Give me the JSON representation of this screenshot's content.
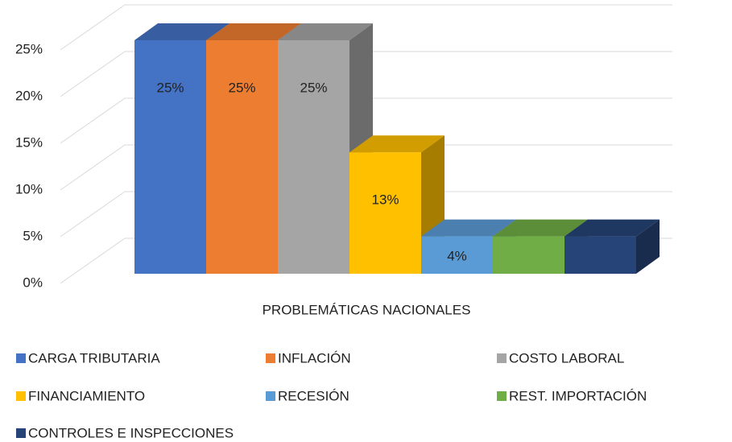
{
  "chart_data": {
    "type": "bar3d",
    "categories": [
      "PROBLEMÁTICAS NACIONALES"
    ],
    "series": [
      {
        "name": "CARGA TRIBUTARIA",
        "color": "#4472c4",
        "values": [
          25
        ],
        "value_labels": [
          "25%"
        ]
      },
      {
        "name": "INFLACIÓN",
        "color": "#ed7d31",
        "values": [
          25
        ],
        "value_labels": [
          "25%"
        ]
      },
      {
        "name": "COSTO LABORAL",
        "color": "#a5a5a5",
        "values": [
          25
        ],
        "value_labels": [
          "25%"
        ]
      },
      {
        "name": "FINANCIAMIENTO",
        "color": "#ffc000",
        "values": [
          13
        ],
        "value_labels": [
          "13%"
        ]
      },
      {
        "name": "RECESIÓN",
        "color": "#5b9bd5",
        "values": [
          4
        ],
        "value_labels": [
          "4%"
        ]
      },
      {
        "name": "REST. IMPORTACIÓN",
        "color": "#70ad47",
        "values": [
          4
        ]
      },
      {
        "name": "CONTROLES E INSPECCIONES",
        "color": "#264478",
        "values": [
          4
        ]
      }
    ],
    "ylim": [
      0,
      25
    ],
    "yticks": [
      {
        "value": 0,
        "label": "0%"
      },
      {
        "value": 5,
        "label": "5%"
      },
      {
        "value": 10,
        "label": "10%"
      },
      {
        "value": 15,
        "label": "15%"
      },
      {
        "value": 20,
        "label": "20%"
      },
      {
        "value": 25,
        "label": "25%"
      }
    ],
    "grid": true
  }
}
